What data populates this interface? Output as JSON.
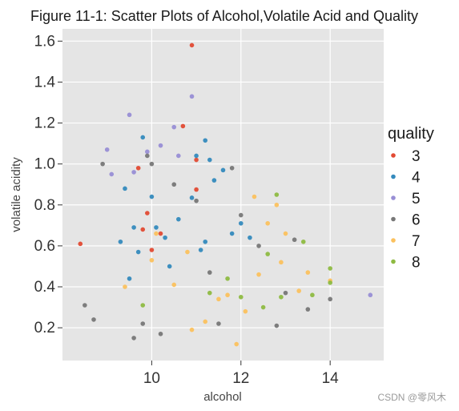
{
  "chart_data": {
    "type": "scatter",
    "title": "Figure 11-1: Scatter Plots of Alcohol,Volatile Acid and Quality",
    "xlabel": "alcohol",
    "ylabel": "volatile acidity",
    "xlim": [
      8.0,
      15.2
    ],
    "ylim": [
      0.04,
      1.66
    ],
    "xticks": [
      10,
      12,
      14
    ],
    "yticks": [
      0.2,
      0.4,
      0.6,
      0.8,
      1.0,
      1.2,
      1.4,
      1.6
    ],
    "xtick_labels": [
      "10",
      "12",
      "14"
    ],
    "ytick_labels": [
      "0.2",
      "0.4",
      "0.6",
      "0.8",
      "1.0",
      "1.2",
      "1.4",
      "1.6"
    ],
    "grid": true,
    "legend": {
      "title": "quality",
      "placement": "right"
    },
    "series": [
      {
        "name": "3",
        "color": "#e24a33",
        "points": [
          [
            8.4,
            0.61
          ],
          [
            9.7,
            0.98
          ],
          [
            10.0,
            0.58
          ],
          [
            10.9,
            1.58
          ],
          [
            10.7,
            1.185
          ],
          [
            11.0,
            1.02
          ],
          [
            10.2,
            0.66
          ],
          [
            9.9,
            0.76
          ],
          [
            11.0,
            0.875
          ],
          [
            9.8,
            0.68
          ]
        ]
      },
      {
        "name": "4",
        "color": "#348abd",
        "points": [
          [
            9.8,
            1.13
          ],
          [
            11.2,
            1.115
          ],
          [
            11.0,
            1.04
          ],
          [
            11.3,
            1.02
          ],
          [
            11.4,
            0.92
          ],
          [
            10.6,
            0.73
          ],
          [
            9.4,
            0.88
          ],
          [
            10.3,
            0.64
          ],
          [
            11.8,
            0.66
          ],
          [
            9.7,
            0.57
          ],
          [
            10.1,
            0.69
          ],
          [
            9.6,
            0.69
          ],
          [
            11.1,
            0.58
          ],
          [
            10.9,
            0.835
          ],
          [
            9.3,
            0.62
          ],
          [
            10.4,
            0.5
          ],
          [
            12.2,
            0.64
          ],
          [
            11.6,
            0.97
          ],
          [
            10.0,
            0.84
          ],
          [
            9.5,
            0.44
          ],
          [
            12.0,
            0.71
          ],
          [
            11.2,
            0.62
          ]
        ]
      },
      {
        "name": "5",
        "color": "#988ed5",
        "points": [
          [
            9.5,
            1.24
          ],
          [
            10.9,
            1.33
          ],
          [
            10.5,
            1.18
          ],
          [
            9.0,
            1.07
          ],
          [
            14.9,
            0.36
          ],
          [
            10.2,
            1.09
          ],
          [
            9.9,
            1.06
          ],
          [
            10.6,
            1.04
          ],
          [
            9.1,
            0.95
          ],
          [
            9.6,
            0.96
          ]
        ]
      },
      {
        "name": "6",
        "color": "#777777",
        "points": [
          [
            8.5,
            0.31
          ],
          [
            8.7,
            0.24
          ],
          [
            8.9,
            1.0
          ],
          [
            9.9,
            1.04
          ],
          [
            10.0,
            1.0
          ],
          [
            11.0,
            0.82
          ],
          [
            12.0,
            0.75
          ],
          [
            11.8,
            0.98
          ],
          [
            13.0,
            0.37
          ],
          [
            13.5,
            0.29
          ],
          [
            14.0,
            0.34
          ],
          [
            13.2,
            0.63
          ],
          [
            12.8,
            0.21
          ],
          [
            11.5,
            0.22
          ],
          [
            10.2,
            0.17
          ],
          [
            9.6,
            0.15
          ],
          [
            9.8,
            0.22
          ],
          [
            12.4,
            0.6
          ],
          [
            10.5,
            0.9
          ],
          [
            11.3,
            0.47
          ]
        ]
      },
      {
        "name": "7",
        "color": "#fbc15e",
        "points": [
          [
            11.9,
            0.12
          ],
          [
            12.3,
            0.84
          ],
          [
            12.8,
            0.8
          ],
          [
            13.5,
            0.47
          ],
          [
            13.0,
            0.66
          ],
          [
            14.0,
            0.43
          ],
          [
            12.6,
            0.71
          ],
          [
            10.1,
            0.66
          ],
          [
            10.8,
            0.57
          ],
          [
            11.5,
            0.34
          ],
          [
            12.1,
            0.28
          ],
          [
            11.2,
            0.23
          ],
          [
            10.5,
            0.41
          ],
          [
            12.4,
            0.46
          ],
          [
            13.3,
            0.38
          ],
          [
            10.9,
            0.19
          ],
          [
            11.7,
            0.36
          ],
          [
            9.4,
            0.4
          ],
          [
            10.0,
            0.53
          ],
          [
            12.9,
            0.52
          ]
        ]
      },
      {
        "name": "8",
        "color": "#8eba42",
        "points": [
          [
            12.8,
            0.85
          ],
          [
            13.4,
            0.62
          ],
          [
            14.0,
            0.49
          ],
          [
            14.0,
            0.42
          ],
          [
            12.0,
            0.35
          ],
          [
            13.6,
            0.36
          ],
          [
            11.7,
            0.44
          ],
          [
            12.6,
            0.56
          ],
          [
            9.8,
            0.31
          ],
          [
            11.3,
            0.37
          ],
          [
            12.9,
            0.35
          ],
          [
            12.5,
            0.3
          ]
        ]
      }
    ]
  },
  "watermark": "CSDN @零风木"
}
